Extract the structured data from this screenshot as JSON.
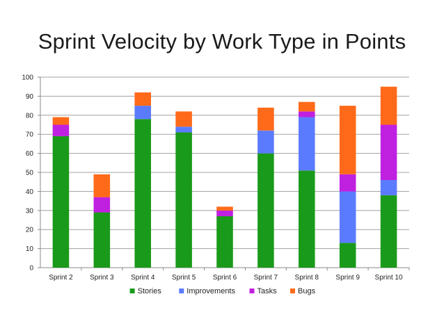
{
  "chart_data": {
    "type": "bar",
    "stacked": true,
    "title": "Sprint Velocity by Work Type in Points",
    "xlabel": "",
    "ylabel": "",
    "categories": [
      "Sprint 2",
      "Sprint 3",
      "Sprint 4",
      "Sprint 5",
      "Sprint 6",
      "Sprint 7",
      "Sprint 8",
      "Sprint 9",
      "Sprint 10"
    ],
    "series": [
      {
        "name": "Stories",
        "color": "#1a9a1a",
        "values": [
          69,
          29,
          78,
          71,
          27,
          60,
          51,
          13,
          38
        ]
      },
      {
        "name": "Improvements",
        "color": "#5b7bff",
        "values": [
          0,
          0,
          7,
          3,
          0,
          12,
          28,
          27,
          8
        ]
      },
      {
        "name": "Tasks",
        "color": "#c020e0",
        "values": [
          6,
          8,
          0,
          0,
          3,
          0,
          3,
          9,
          29
        ]
      },
      {
        "name": "Bugs",
        "color": "#ff6a1a",
        "values": [
          4,
          12,
          7,
          8,
          2,
          12,
          5,
          36,
          20
        ]
      }
    ],
    "ylim": [
      0,
      100
    ],
    "yticks": [
      0,
      10,
      20,
      30,
      40,
      50,
      60,
      70,
      80,
      90,
      100
    ],
    "grid": true,
    "legend_position": "bottom"
  }
}
